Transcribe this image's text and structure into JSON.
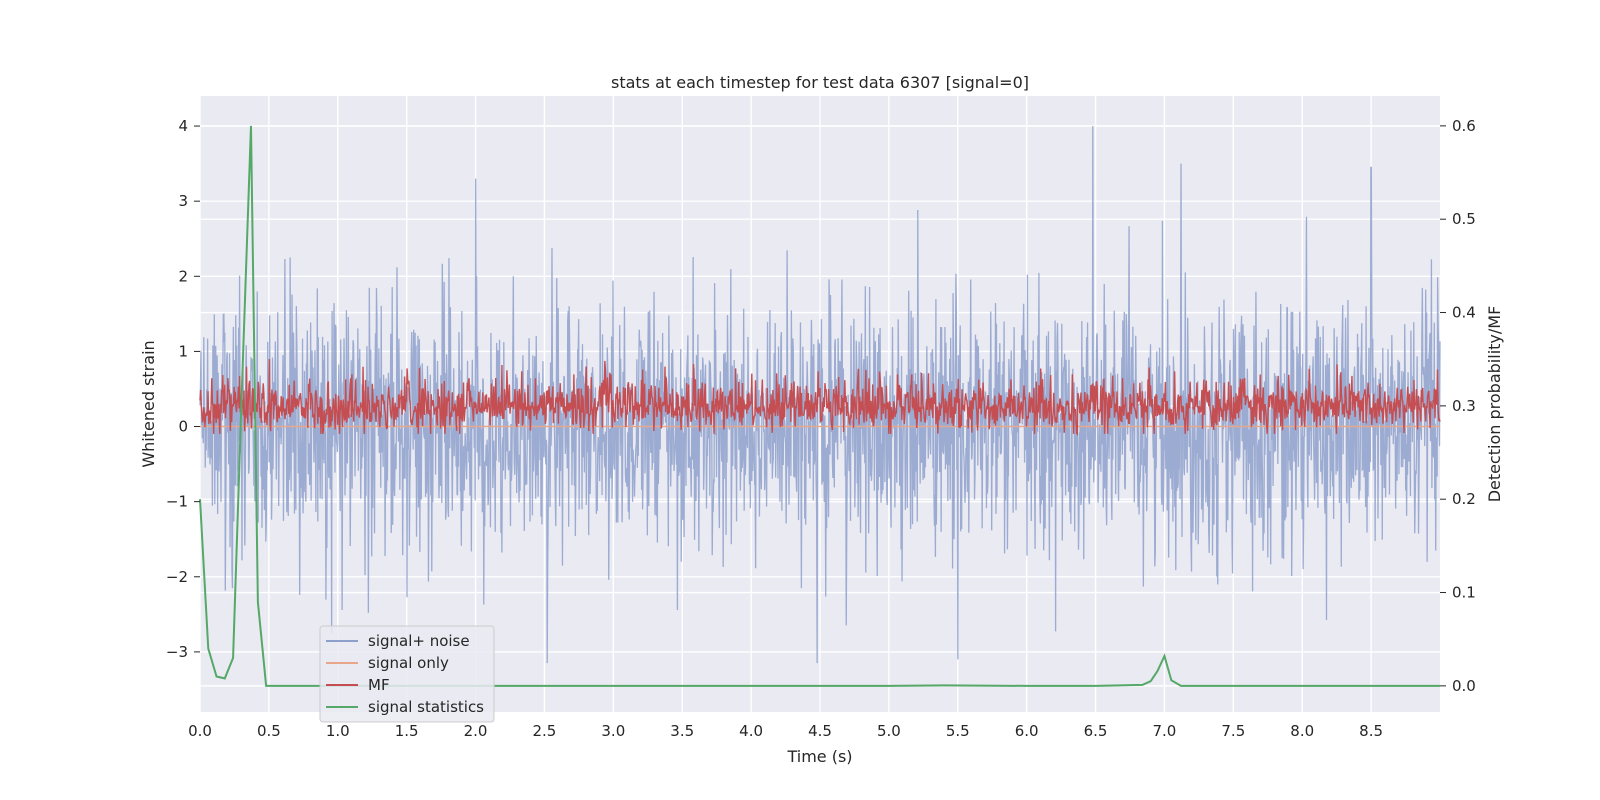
{
  "chart_data": {
    "type": "line",
    "title": "stats at each timestep for test data 6307 [signal=0]",
    "xlabel": "Time (s)",
    "ylabel_left": "Whitened strain",
    "ylabel_right": "Detection probability/MF",
    "xlim": [
      0.0,
      9.0
    ],
    "ylim_left": [
      -3.8,
      4.4
    ],
    "ylim_right": [
      -0.028,
      0.632
    ],
    "x_ticks": [
      "0.0",
      "0.5",
      "1.0",
      "1.5",
      "2.0",
      "2.5",
      "3.0",
      "3.5",
      "4.0",
      "4.5",
      "5.0",
      "5.5",
      "6.0",
      "6.5",
      "7.0",
      "7.5",
      "8.0",
      "8.5"
    ],
    "y_ticks_left": [
      "4",
      "3",
      "2",
      "1",
      "0",
      "−1",
      "−2",
      "−3"
    ],
    "y_ticks_right": [
      "0.6",
      "0.5",
      "0.4",
      "0.3",
      "0.2",
      "0.1",
      "0.0"
    ],
    "grid": true,
    "legend_position": "lower-left",
    "series": [
      {
        "name": "signal+ noise",
        "axis": "left",
        "color": "#8da0cb",
        "description_range": [
          -3.2,
          4.0
        ],
        "notable_peaks": [
          {
            "x": 6.48,
            "y": 4.0
          },
          {
            "x": 2.0,
            "y": 3.3
          },
          {
            "x": 7.12,
            "y": 3.5
          },
          {
            "x": 8.5,
            "y": 3.45
          },
          {
            "x": 4.48,
            "y": -3.15
          },
          {
            "x": 5.5,
            "y": -3.1
          },
          {
            "x": 2.52,
            "y": -3.15
          }
        ]
      },
      {
        "name": "signal only",
        "axis": "left",
        "color": "#e8a68a",
        "x": [
          0.0,
          9.0
        ],
        "y": [
          0.0,
          0.0
        ]
      },
      {
        "name": "MF",
        "axis": "right",
        "color": "#c44e52",
        "baseline": 0.3,
        "range": [
          0.27,
          0.36
        ]
      },
      {
        "name": "signal statistics",
        "axis": "right",
        "color": "#55a868",
        "x": [
          0.0,
          0.06,
          0.12,
          0.18,
          0.24,
          0.3,
          0.37,
          0.42,
          0.48,
          0.54,
          1.0,
          2.0,
          3.0,
          4.0,
          5.0,
          5.4,
          6.0,
          6.5,
          6.84,
          6.9,
          6.95,
          7.0,
          7.05,
          7.12,
          7.5,
          8.0,
          9.0
        ],
        "y": [
          0.2,
          0.04,
          0.01,
          0.008,
          0.03,
          0.3,
          0.6,
          0.09,
          0.0,
          0.0,
          0.0,
          0.0,
          0.0,
          0.0,
          0.0,
          0.0005,
          0.0,
          0.0,
          0.001,
          0.005,
          0.016,
          0.032,
          0.006,
          0.0,
          0.0,
          0.0,
          0.0
        ]
      }
    ]
  }
}
